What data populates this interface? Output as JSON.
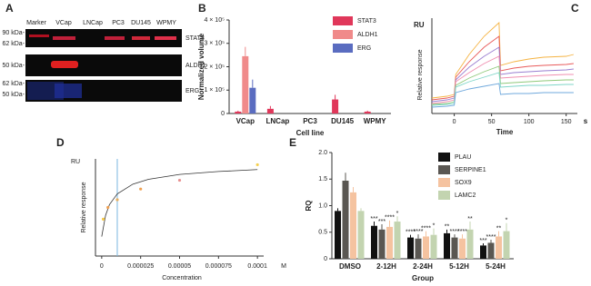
{
  "blot": {
    "letter": "A",
    "lanes": [
      "Marker",
      "VCap",
      "LNCap",
      "PC3",
      "DU145",
      "WPMY"
    ],
    "strips": [
      {
        "protein": "STAT3",
        "markers": [
          "90 kDa-",
          "62 kDa-"
        ]
      },
      {
        "protein": "ALDH1",
        "markers": [
          "50 kDa-"
        ]
      },
      {
        "protein": "ERG",
        "markers": [
          "62 kDa-",
          "50 kDa-"
        ]
      }
    ]
  },
  "chart_data": [
    {
      "type": "bar",
      "letter": "B",
      "y_label": "Normalized volume",
      "x_label": "Cell line",
      "categories": [
        "VCap",
        "LNCap",
        "PC3",
        "DU145",
        "WPMY"
      ],
      "series": [
        {
          "name": "STAT3",
          "color": "#e0375a",
          "values": [
            8000,
            20000,
            null,
            60000,
            8000
          ],
          "errors": [
            4000,
            12000,
            null,
            20000,
            4000
          ]
        },
        {
          "name": "ALDH1",
          "color": "#f08a8a",
          "values": [
            245000,
            null,
            null,
            null,
            null
          ],
          "errors": [
            40000,
            null,
            null,
            null,
            null
          ]
        },
        {
          "name": "ERG",
          "color": "#5a6cc0",
          "values": [
            110000,
            null,
            null,
            null,
            null
          ],
          "errors": [
            35000,
            null,
            null,
            null,
            null
          ]
        }
      ],
      "ylim": [
        0,
        400000
      ],
      "yticks": [
        {
          "value": 0,
          "label": "0"
        },
        {
          "value": 100000,
          "label": "1 × 10⁵"
        },
        {
          "value": 200000,
          "label": "2 × 10⁵"
        },
        {
          "value": 300000,
          "label": "3 × 10⁵"
        },
        {
          "value": 400000,
          "label": "4 × 10⁵"
        }
      ]
    },
    {
      "type": "line",
      "letter": "C",
      "y_unit": "RU",
      "y_label": "Relative response",
      "x_label": "Time",
      "x_unit": "s",
      "x": [
        -30,
        -10,
        0,
        2,
        20,
        40,
        60,
        62,
        80,
        100,
        120,
        150,
        160
      ],
      "xlim": [
        -30,
        165
      ],
      "xticks": [
        0,
        50,
        100,
        150
      ],
      "ylim": [
        -5,
        100
      ],
      "series": [
        {
          "color": "#f5b342",
          "values": [
            12,
            14,
            16,
            38,
            60,
            80,
            95,
            48,
            52,
            55,
            57,
            58,
            60
          ]
        },
        {
          "color": "#e85a5a",
          "values": [
            10,
            12,
            14,
            35,
            52,
            68,
            80,
            42,
            45,
            47,
            48,
            49,
            50
          ]
        },
        {
          "color": "#9a7fd1",
          "values": [
            8,
            10,
            12,
            32,
            46,
            58,
            68,
            38,
            40,
            41,
            42,
            43,
            44
          ]
        },
        {
          "color": "#f08fb0",
          "values": [
            6,
            8,
            10,
            30,
            40,
            50,
            58,
            34,
            35,
            36,
            37,
            38,
            38
          ]
        },
        {
          "color": "#8fc97a",
          "values": [
            5,
            6,
            8,
            26,
            34,
            41,
            47,
            28,
            29,
            30,
            31,
            32,
            32
          ]
        },
        {
          "color": "#7fd6c8",
          "values": [
            4,
            5,
            6,
            24,
            30,
            35,
            40,
            24,
            25,
            26,
            26,
            27,
            27
          ]
        },
        {
          "color": "#6fa8dc",
          "values": [
            2,
            3,
            4,
            18,
            22,
            25,
            28,
            16,
            17,
            17,
            18,
            18,
            18
          ]
        }
      ]
    },
    {
      "type": "scatter",
      "letter": "D",
      "y_unit": "RU",
      "y_label": "Relative response",
      "x_label": "Concentration",
      "x_unit": "M",
      "xlim": [
        -4e-06,
        0.000104
      ],
      "xticks": [
        0,
        2.5e-05,
        5e-05,
        7.5e-05,
        0.0001
      ],
      "ylim": [
        0,
        10
      ],
      "points": {
        "x": [
          1e-06,
          4e-06,
          1e-05,
          2.5e-05,
          5e-05,
          0.0001
        ],
        "values": [
          3.8,
          5,
          5.8,
          6.9,
          7.8,
          9.4
        ],
        "colors": [
          "#f5c84a",
          "#f0a050",
          "#e8b060",
          "#f0a050",
          "#e89090",
          "#f5d050"
        ]
      },
      "fit": {
        "x": [
          0,
          2.5e-06,
          5e-06,
          1e-05,
          2e-05,
          3e-05,
          5e-05,
          7.5e-05,
          0.0001
        ],
        "values": [
          2,
          4.2,
          5.3,
          6.4,
          7.4,
          7.9,
          8.4,
          8.7,
          8.9
        ],
        "color": "#333333"
      },
      "vline": {
        "value": 1e-05,
        "color": "#7ab8e0"
      }
    },
    {
      "type": "grouped_bar",
      "letter": "E",
      "y_label": "RQ",
      "x_label": "Group",
      "categories": [
        "DMSO",
        "2-12H",
        "2-24H",
        "5-12H",
        "5-24H"
      ],
      "ylim": [
        0,
        2
      ],
      "yticks": [
        0,
        0.5,
        {
          "value": 1,
          "label": "1.0"
        },
        1.5,
        {
          "value": 2,
          "label": "2.0"
        }
      ],
      "series": [
        {
          "name": "PLAU",
          "color": "#111111",
          "values": [
            0.9,
            0.62,
            0.4,
            0.48,
            0.25
          ],
          "errors": [
            0.05,
            0.08,
            0.05,
            0.07,
            0.04
          ],
          "significance": [
            null,
            "***",
            "****",
            "**",
            "***"
          ]
        },
        {
          "name": "SERPINE1",
          "color": "#5a5752",
          "values": [
            1.47,
            0.55,
            0.38,
            0.4,
            0.3
          ],
          "errors": [
            0.15,
            0.1,
            0.08,
            0.06,
            0.06
          ],
          "significance": [
            null,
            "***",
            "****",
            "****",
            "****"
          ]
        },
        {
          "name": "SOX9",
          "color": "#f5c3a0",
          "values": [
            1.25,
            0.6,
            0.42,
            0.38,
            0.42
          ],
          "errors": [
            0.1,
            0.12,
            0.1,
            0.08,
            0.1
          ],
          "significance": [
            null,
            "****",
            "****",
            "****",
            "**"
          ]
        },
        {
          "name": "LAMC2",
          "color": "#c3d4b0",
          "values": [
            0.9,
            0.7,
            0.45,
            0.55,
            0.52
          ],
          "errors": [
            0.05,
            0.1,
            0.12,
            0.15,
            0.15
          ],
          "significance": [
            null,
            "*",
            "*",
            "**",
            "*"
          ]
        }
      ]
    }
  ]
}
